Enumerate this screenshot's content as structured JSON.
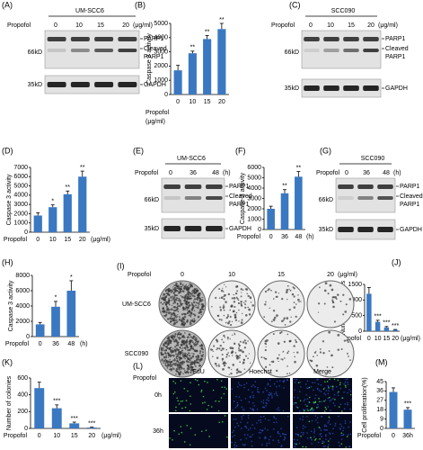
{
  "chart_data": [
    {
      "type": "bar",
      "panel": "(B)",
      "ylabel": "Caspase 3 activity",
      "x_label": "Propofol",
      "x_unit": "(μg/ml)",
      "categories": [
        "0",
        "10",
        "15",
        "20"
      ],
      "values": [
        1700,
        2900,
        3900,
        4600
      ],
      "errors": [
        350,
        150,
        250,
        400
      ],
      "annotations": [
        null,
        "**",
        "**",
        "**"
      ],
      "ylim": [
        0,
        5000
      ],
      "yticks": [
        0,
        1000,
        2000,
        3000,
        4000,
        5000
      ],
      "color": "#3a78c2"
    },
    {
      "type": "bar",
      "panel": "(D)",
      "ylabel": "Caspase 3 activity",
      "x_label": "Propofol",
      "x_unit": "(μg/ml)",
      "categories": [
        "0",
        "10",
        "15",
        "20"
      ],
      "values": [
        1800,
        2700,
        4100,
        6000
      ],
      "errors": [
        300,
        250,
        350,
        600
      ],
      "annotations": [
        null,
        "*",
        "**",
        "**"
      ],
      "ylim": [
        0,
        7000
      ],
      "yticks": [
        0,
        1000,
        2000,
        3000,
        4000,
        5000,
        6000,
        7000
      ],
      "color": "#3a78c2"
    },
    {
      "type": "bar",
      "panel": "(F)",
      "ylabel": "Caspase-3 activity",
      "x_label": "Propofol",
      "x_unit": "(h)",
      "categories": [
        "0",
        "36",
        "48"
      ],
      "values": [
        2000,
        3500,
        5100
      ],
      "errors": [
        250,
        350,
        500
      ],
      "annotations": [
        null,
        "**",
        "**"
      ],
      "ylim": [
        0,
        6000
      ],
      "yticks": [
        0,
        1000,
        2000,
        3000,
        4000,
        5000,
        6000
      ],
      "color": "#3a78c2"
    },
    {
      "type": "bar",
      "panel": "(H)",
      "ylabel": "Caspase 3 activity",
      "x_label": "Propofol",
      "x_unit": "(h)",
      "categories": [
        "0",
        "36",
        "48"
      ],
      "values": [
        1600,
        3900,
        6000
      ],
      "errors": [
        250,
        700,
        1300
      ],
      "annotations": [
        null,
        "*",
        "*"
      ],
      "ylim": [
        0,
        8000
      ],
      "yticks": [
        0,
        2000,
        4000,
        6000,
        8000
      ],
      "color": "#3a78c2"
    },
    {
      "type": "bar",
      "panel": "(J)",
      "ylabel": "Number of colonies",
      "x_label": "Propofol",
      "x_unit": "(μg/ml)",
      "categories": [
        "0",
        "10",
        "15",
        "20"
      ],
      "values": [
        1200,
        300,
        120,
        40
      ],
      "errors": [
        200,
        50,
        30,
        15
      ],
      "annotations": [
        null,
        "***",
        "***",
        "***"
      ],
      "ylim": [
        0,
        1500
      ],
      "yticks": [
        0,
        500,
        1000,
        1500
      ],
      "color": "#3a78c2"
    },
    {
      "type": "bar",
      "panel": "(K)",
      "ylabel": "Number of colonies",
      "x_label": "Propofol",
      "x_unit": "(μg/ml)",
      "categories": [
        "0",
        "10",
        "15",
        "20"
      ],
      "values": [
        480,
        240,
        60,
        10
      ],
      "errors": [
        70,
        40,
        15,
        5
      ],
      "annotations": [
        null,
        "***",
        "***",
        "***"
      ],
      "ylim": [
        0,
        600
      ],
      "yticks": [
        0,
        200,
        400,
        600
      ],
      "color": "#3a78c2"
    },
    {
      "type": "bar",
      "panel": "(M)",
      "ylabel": "Cell proliferation(%)",
      "x_label": "Propofol",
      "categories": [
        "0",
        "36h"
      ],
      "values": [
        35,
        18
      ],
      "errors": [
        4,
        2
      ],
      "annotations": [
        null,
        "***"
      ],
      "ylim": [
        0,
        45
      ],
      "yticks": [
        0,
        9,
        18,
        27,
        36,
        45
      ],
      "color": "#3a78c2"
    }
  ],
  "blots": [
    {
      "panel": "(A)",
      "cell_line": "UM-SCC6",
      "treatment": "Propofol",
      "lanes": [
        "0",
        "10",
        "15",
        "20"
      ],
      "unit": "(μg/ml)",
      "band": "PARP1",
      "cleaved": [
        "Cleaved",
        "PARP1"
      ],
      "loading": "GAPDH",
      "markers": [
        "66kD",
        "35kD"
      ]
    },
    {
      "panel": "(C)",
      "cell_line": "SCC090",
      "treatment": "Propofol",
      "lanes": [
        "0",
        "10",
        "15",
        "20"
      ],
      "unit": "(μg/ml)",
      "band": "PARP1",
      "cleaved": [
        "Cleaved",
        "PARP1"
      ],
      "loading": "GAPDH",
      "markers": [
        "66kD",
        "35kD"
      ]
    },
    {
      "panel": "(E)",
      "cell_line": "UM-SCC6",
      "treatment": "Propofol",
      "lanes": [
        "0",
        "36",
        "48"
      ],
      "unit": "(h)",
      "band": "PARP1",
      "cleaved": [
        "Cleaved",
        "PARP1"
      ],
      "loading": "GAPDH",
      "markers": [
        "66kD",
        "35kD"
      ]
    },
    {
      "panel": "(G)",
      "cell_line": "SCC090",
      "treatment": "Propofol",
      "lanes": [
        "0",
        "36",
        "48"
      ],
      "unit": "(h)",
      "band": "PARP1",
      "cleaved": [
        "Cleaved",
        "PARP1"
      ],
      "loading": "GAPDH",
      "markers": [
        "66kD",
        "35kD"
      ]
    }
  ],
  "colonies": {
    "panel": "(I)",
    "treatment": "Propofol",
    "doses": [
      "0",
      "10",
      "15",
      "20"
    ],
    "unit": "(μg/ml)",
    "rows": [
      "UM-SCC6",
      "SCC090"
    ]
  },
  "imaging": {
    "panel": "(L)",
    "treatment": "Propofol",
    "columns": [
      "EdU",
      "Hoechst",
      "Merge"
    ],
    "rows": [
      "0h",
      "36h"
    ]
  }
}
